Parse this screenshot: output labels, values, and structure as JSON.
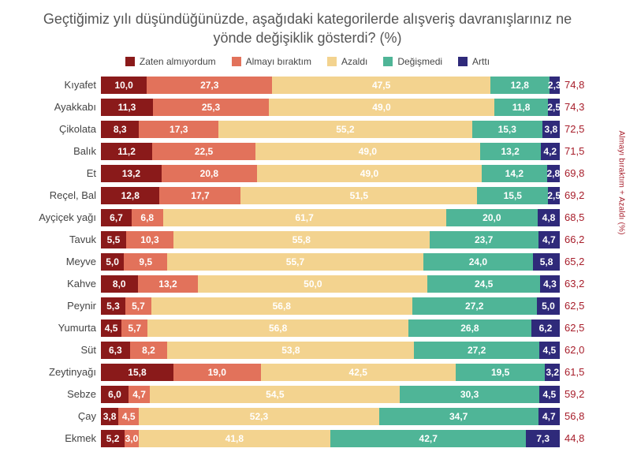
{
  "chart": {
    "type": "stacked-bar-horizontal",
    "title": "Geçtiğimiz yılı düşündüğünüzde, aşağıdaki kategorilerde alışveriş davranışlarınız ne yönde değişiklik gösterdi? (%)",
    "background_color": "#ffffff",
    "title_color": "#555555",
    "title_fontsize": 18,
    "label_fontsize": 13,
    "value_fontsize": 12,
    "side_axis_label": "Almayı bıraktım + Azaldı (%)",
    "total_color": "#a71d2a",
    "legend": [
      {
        "label": "Zaten almıyordum",
        "color": "#8a1a1a"
      },
      {
        "label": "Almayı bıraktım",
        "color": "#e2725b"
      },
      {
        "label": "Azaldı",
        "color": "#f3d38f"
      },
      {
        "label": "Değişmedi",
        "color": "#4fb597"
      },
      {
        "label": "Arttı",
        "color": "#2f2a7a"
      }
    ],
    "series_colors": [
      "#8a1a1a",
      "#e2725b",
      "#f3d38f",
      "#4fb597",
      "#2f2a7a"
    ],
    "categories": [
      {
        "label": "Kıyafet",
        "values": [
          10.0,
          27.3,
          47.5,
          12.8,
          2.3
        ],
        "total": 74.8
      },
      {
        "label": "Ayakkabı",
        "values": [
          11.3,
          25.3,
          49.0,
          11.8,
          2.5
        ],
        "total": 74.3
      },
      {
        "label": "Çikolata",
        "values": [
          8.3,
          17.3,
          55.2,
          15.3,
          3.8
        ],
        "total": 72.5
      },
      {
        "label": "Balık",
        "values": [
          11.2,
          22.5,
          49.0,
          13.2,
          4.2
        ],
        "total": 71.5
      },
      {
        "label": "Et",
        "values": [
          13.2,
          20.8,
          49.0,
          14.2,
          2.8
        ],
        "total": 69.8
      },
      {
        "label": "Reçel, Bal",
        "values": [
          12.8,
          17.7,
          51.5,
          15.5,
          2.5
        ],
        "total": 69.2
      },
      {
        "label": "Ayçiçek yağı",
        "values": [
          6.7,
          6.8,
          61.7,
          20.0,
          4.8
        ],
        "total": 68.5
      },
      {
        "label": "Tavuk",
        "values": [
          5.5,
          10.3,
          55.8,
          23.7,
          4.7
        ],
        "total": 66.2
      },
      {
        "label": "Meyve",
        "values": [
          5.0,
          9.5,
          55.7,
          24.0,
          5.8
        ],
        "total": 65.2
      },
      {
        "label": "Kahve",
        "values": [
          8.0,
          13.2,
          50.0,
          24.5,
          4.3
        ],
        "total": 63.2
      },
      {
        "label": "Peynir",
        "values": [
          5.3,
          5.7,
          56.8,
          27.2,
          5.0
        ],
        "total": 62.5
      },
      {
        "label": "Yumurta",
        "values": [
          4.5,
          5.7,
          56.8,
          26.8,
          6.2
        ],
        "total": 62.5
      },
      {
        "label": "Süt",
        "values": [
          6.3,
          8.2,
          53.8,
          27.2,
          4.5
        ],
        "total": 62.0
      },
      {
        "label": "Zeytinyağı",
        "values": [
          15.8,
          19.0,
          42.5,
          19.5,
          3.2
        ],
        "total": 61.5
      },
      {
        "label": "Sebze",
        "values": [
          6.0,
          4.7,
          54.5,
          30.3,
          4.5
        ],
        "total": 59.2
      },
      {
        "label": "Çay",
        "values": [
          3.8,
          4.5,
          52.3,
          34.7,
          4.7
        ],
        "total": 56.8
      },
      {
        "label": "Ekmek",
        "values": [
          5.2,
          3.0,
          41.8,
          42.7,
          7.3
        ],
        "total": 44.8
      }
    ]
  }
}
